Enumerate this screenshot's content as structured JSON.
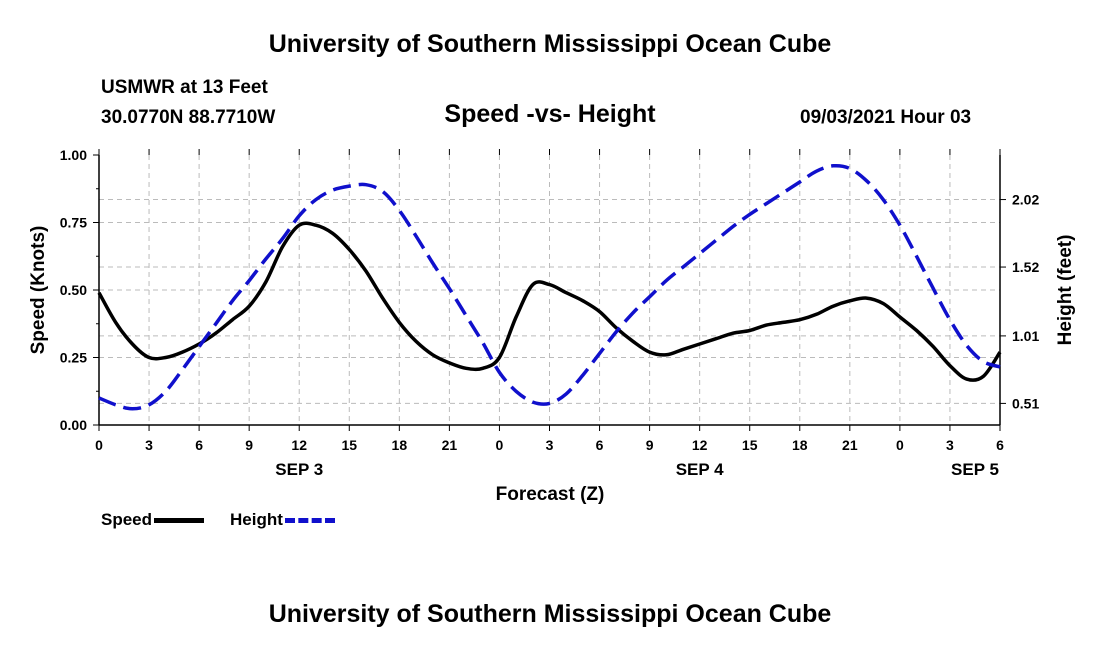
{
  "header": {
    "top_title": "University of Southern Mississippi Ocean Cube",
    "station": "USMWR at 13 Feet",
    "coords": "30.0770N  88.7710W",
    "chart_title": "Speed -vs- Height",
    "datetime": "09/03/2021 Hour 03"
  },
  "footer": {
    "bottom_title": "University of Southern Mississippi Ocean Cube"
  },
  "legend": {
    "speed_label": "Speed",
    "height_label": "Height"
  },
  "colors": {
    "speed": "#000000",
    "height": "#1010cc",
    "grid": "#bbbbbb"
  },
  "chart_data": {
    "type": "line",
    "title": "Speed -vs- Height",
    "xlabel": "Forecast (Z)",
    "ylabel": "Speed (Knots)",
    "y2label": "Height (feet)",
    "xlim": [
      0,
      54
    ],
    "ylim": [
      0,
      1.0
    ],
    "y2lim": [
      0.35,
      2.35
    ],
    "x_ticks": [
      0,
      3,
      6,
      9,
      12,
      15,
      18,
      21,
      24,
      27,
      30,
      33,
      36,
      39,
      42,
      45,
      48,
      51,
      54
    ],
    "x_tick_labels": [
      "0",
      "3",
      "6",
      "9",
      "12",
      "15",
      "18",
      "21",
      "0",
      "3",
      "6",
      "9",
      "12",
      "15",
      "18",
      "21",
      "0",
      "3",
      "6"
    ],
    "day_labels": [
      {
        "label": "SEP 3",
        "x": 12
      },
      {
        "label": "SEP 4",
        "x": 36
      },
      {
        "label": "SEP 5",
        "x": 52.5
      }
    ],
    "y_ticks": [
      0.0,
      0.25,
      0.5,
      0.75,
      1.0
    ],
    "y_tick_labels": [
      "0.00",
      "0.25",
      "0.50",
      "0.75",
      "1.00"
    ],
    "y2_ticks": [
      0.51,
      1.01,
      1.52,
      2.02
    ],
    "y2_tick_labels": [
      "0.51",
      "1.01",
      "1.52",
      "2.02"
    ],
    "grid": true,
    "series": [
      {
        "name": "Speed",
        "axis": "left",
        "style": "solid",
        "x": [
          0,
          1,
          2,
          3,
          4,
          5,
          6,
          7,
          8,
          9,
          10,
          11,
          12,
          13,
          14,
          15,
          16,
          17,
          18,
          19,
          20,
          21,
          22,
          23,
          24,
          25,
          26,
          27,
          28,
          29,
          30,
          31,
          32,
          33,
          34,
          35,
          36,
          37,
          38,
          39,
          40,
          41,
          42,
          43,
          44,
          45,
          46,
          47,
          48,
          49,
          50,
          51,
          52,
          53,
          54
        ],
        "values": [
          0.49,
          0.38,
          0.3,
          0.25,
          0.25,
          0.27,
          0.3,
          0.34,
          0.39,
          0.44,
          0.53,
          0.66,
          0.74,
          0.74,
          0.71,
          0.65,
          0.57,
          0.47,
          0.38,
          0.31,
          0.26,
          0.23,
          0.21,
          0.21,
          0.25,
          0.4,
          0.52,
          0.52,
          0.49,
          0.46,
          0.42,
          0.36,
          0.31,
          0.27,
          0.26,
          0.28,
          0.3,
          0.32,
          0.34,
          0.35,
          0.37,
          0.38,
          0.39,
          0.41,
          0.44,
          0.46,
          0.47,
          0.45,
          0.4,
          0.35,
          0.29,
          0.22,
          0.17,
          0.18,
          0.27
        ]
      },
      {
        "name": "Height",
        "axis": "right",
        "style": "dashed",
        "x": [
          0,
          1,
          2,
          3,
          4,
          5,
          6,
          7,
          8,
          9,
          10,
          11,
          12,
          13,
          14,
          15,
          16,
          17,
          18,
          19,
          20,
          21,
          22,
          23,
          24,
          25,
          26,
          27,
          28,
          29,
          30,
          31,
          32,
          33,
          34,
          35,
          36,
          37,
          38,
          39,
          40,
          41,
          42,
          43,
          44,
          45,
          46,
          47,
          48,
          49,
          50,
          51,
          52,
          53,
          54
        ],
        "values": [
          0.55,
          0.5,
          0.47,
          0.5,
          0.6,
          0.76,
          0.93,
          1.1,
          1.27,
          1.42,
          1.58,
          1.73,
          1.9,
          2.02,
          2.09,
          2.12,
          2.13,
          2.08,
          1.94,
          1.75,
          1.55,
          1.36,
          1.16,
          0.96,
          0.74,
          0.6,
          0.52,
          0.51,
          0.58,
          0.72,
          0.88,
          1.04,
          1.18,
          1.3,
          1.42,
          1.52,
          1.62,
          1.72,
          1.82,
          1.91,
          1.99,
          2.07,
          2.15,
          2.23,
          2.27,
          2.25,
          2.16,
          2.02,
          1.83,
          1.6,
          1.36,
          1.13,
          0.94,
          0.82,
          0.78
        ]
      }
    ]
  }
}
